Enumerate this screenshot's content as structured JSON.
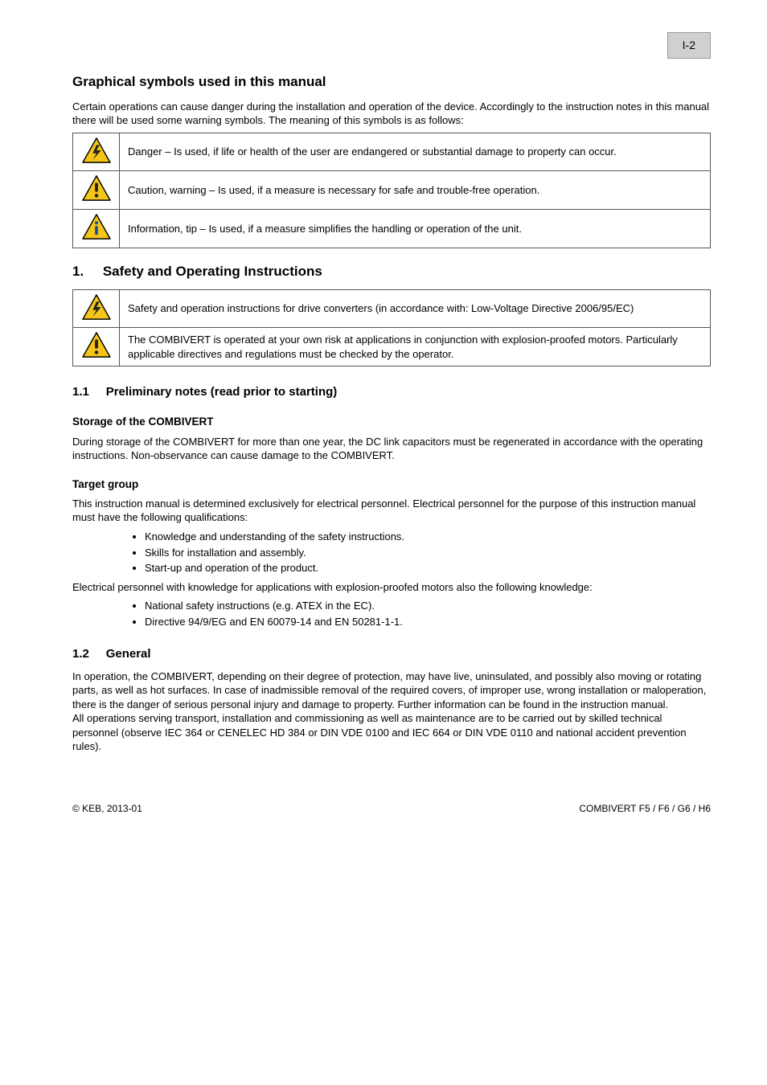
{
  "page": {
    "number": "I-2",
    "footer_left": "© KEB, 2013-01",
    "footer_right": "COMBIVERT F5 / F6 / G6 / H6"
  },
  "symbol_legend": {
    "title": "Graphical symbols used in this manual",
    "intro": "Certain operations can cause danger during the installation and operation of the device. Accordingly to the instruction notes in this manual there will be used some warning symbols. The meaning of this symbols is as follows:",
    "rows": [
      {
        "icon": "bolt",
        "text": "Danger – Is used, if life or health of the user are endangered or substantial damage to property can occur."
      },
      {
        "icon": "excl",
        "text": "Caution, warning – Is used, if a measure is necessary for safe and trouble-free operation."
      },
      {
        "icon": "info",
        "text": "Information, tip – Is used, if a measure simplifies the handling or operation of the unit."
      }
    ]
  },
  "chapter": {
    "number": "1.",
    "title": "Safety and Operating Instructions",
    "warn_rows": [
      {
        "icon": "bolt",
        "text": "Safety and operation instructions for drive converters (in accordance with: Low-Voltage Directive 2006/95/EC)"
      },
      {
        "icon": "excl",
        "text": "The COMBIVERT is operated at your own risk at applications in conjunction with explosion-proofed motors. Particularly applicable directives and regulations must be checked by the operator."
      }
    ],
    "sections": {
      "preliminary": {
        "number": "1.1",
        "title": "Preliminary notes (read prior to starting)",
        "storage_note": "Storage of the COMBIVERT",
        "storage_body": "During storage of the COMBIVERT for more than one year, the DC link capacitors must be regenerated in accordance with the operating instructions. Non-observance can cause damage to the COMBIVERT.",
        "target_group": "Target group",
        "target_body": "This instruction manual is determined exclusively for electrical personnel. Electrical personnel for the purpose of this instruction manual must have the following qualifications:",
        "bullets1": [
          "Knowledge and understanding of the safety instructions.",
          "Skills for installation and assembly.",
          "Start-up and operation of the product."
        ],
        "bullets_lead2": "Electrical personnel with knowledge for applications with explosion-proofed motors also the following knowledge:",
        "bullets2": [
          "National safety instructions (e.g. ATEX in the EC).",
          "Directive 94/9/EG and EN 60079-14 and EN 50281-1-1."
        ]
      },
      "general": {
        "number": "1.2",
        "title": "General",
        "body": "In operation, the COMBIVERT, depending on their degree of protection, may have live, uninsulated, and possibly also moving or rotating parts, as well as hot surfaces. In case of inadmissible removal of the required covers, of improper use, wrong installation or maloperation, there is the danger of serious personal injury and damage to property. Further information can be found in the instruction manual.\nAll operations serving transport, installation and commissioning as well as maintenance are to be carried out by skilled technical personnel (observe IEC 364 or CENELEC HD 384 or DIN VDE 0100 and IEC 664 or DIN VDE 0110 and national accident prevention rules)."
      }
    }
  },
  "icons": {
    "triangle_fill": "#f5c518",
    "triangle_stroke": "#000000",
    "bolt_color": "#333333",
    "excl_color": "#333333",
    "info_color": "#1e4fa3"
  }
}
